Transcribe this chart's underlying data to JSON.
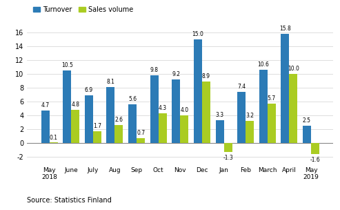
{
  "categories": [
    "May\n2018",
    "June",
    "July",
    "Aug",
    "Sep",
    "Oct",
    "Nov",
    "Dec",
    "Jan",
    "Feb",
    "March",
    "April",
    "May\n2019"
  ],
  "turnover": [
    4.7,
    10.5,
    6.9,
    8.1,
    5.6,
    9.8,
    9.2,
    15.0,
    3.3,
    7.4,
    10.6,
    15.8,
    2.5
  ],
  "sales_volume": [
    0.1,
    4.8,
    1.7,
    2.6,
    0.7,
    4.3,
    4.0,
    8.9,
    -1.3,
    3.2,
    5.7,
    10.0,
    -1.6
  ],
  "turnover_color": "#2C7BB6",
  "sales_volume_color": "#AACC22",
  "ylim": [
    -3,
    17
  ],
  "yticks": [
    -2,
    0,
    2,
    4,
    6,
    8,
    10,
    12,
    14,
    16
  ],
  "source_text": "Source: Statistics Finland",
  "legend_labels": [
    "Turnover",
    "Sales volume"
  ],
  "bar_width": 0.38
}
